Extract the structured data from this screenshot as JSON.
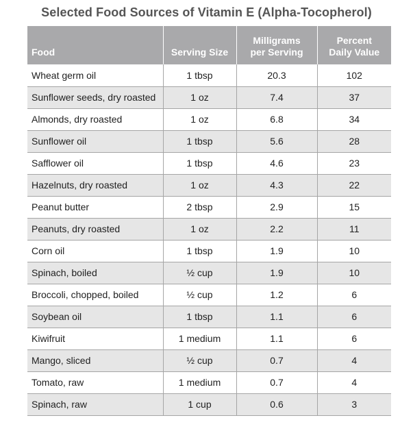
{
  "title": "Selected Food Sources of Vitamin E (Alpha-Tocopherol)",
  "header": {
    "food": "Food",
    "serving": "Serving Size",
    "mg_line1": "Milligrams",
    "mg_line2": "per Serving",
    "pct_line1": "Percent",
    "pct_line2": "Daily Value"
  },
  "rows": [
    {
      "food": "Wheat germ oil",
      "serving": "1 tbsp",
      "mg": "20.3",
      "pct": "102"
    },
    {
      "food": "Sunflower seeds, dry roasted",
      "serving": "1 oz",
      "mg": "7.4",
      "pct": "37"
    },
    {
      "food": "Almonds, dry roasted",
      "serving": "1 oz",
      "mg": "6.8",
      "pct": "34"
    },
    {
      "food": "Sunflower oil",
      "serving": "1 tbsp",
      "mg": "5.6",
      "pct": "28"
    },
    {
      "food": "Safflower oil",
      "serving": "1 tbsp",
      "mg": "4.6",
      "pct": "23"
    },
    {
      "food": "Hazelnuts, dry roasted",
      "serving": "1 oz",
      "mg": "4.3",
      "pct": "22"
    },
    {
      "food": "Peanut butter",
      "serving": "2 tbsp",
      "mg": "2.9",
      "pct": "15"
    },
    {
      "food": "Peanuts, dry roasted",
      "serving": "1 oz",
      "mg": "2.2",
      "pct": "11"
    },
    {
      "food": "Corn oil",
      "serving": "1 tbsp",
      "mg": "1.9",
      "pct": "10"
    },
    {
      "food": "Spinach, boiled",
      "serving": "½ cup",
      "mg": "1.9",
      "pct": "10"
    },
    {
      "food": "Broccoli, chopped, boiled",
      "serving": "½ cup",
      "mg": "1.2",
      "pct": "6"
    },
    {
      "food": "Soybean oil",
      "serving": "1 tbsp",
      "mg": "1.1",
      "pct": "6"
    },
    {
      "food": "Kiwifruit",
      "serving": "1 medium",
      "mg": "1.1",
      "pct": "6"
    },
    {
      "food": "Mango, sliced",
      "serving": "½ cup",
      "mg": "0.7",
      "pct": "4"
    },
    {
      "food": "Tomato, raw",
      "serving": "1 medium",
      "mg": "0.7",
      "pct": "4"
    },
    {
      "food": "Spinach, raw",
      "serving": "1 cup",
      "mg": "0.6",
      "pct": "3"
    }
  ],
  "colors": {
    "header_bg": "#a9a9ab",
    "header_text": "#ffffff",
    "title_text": "#555555",
    "stripe_bg": "#e6e6e6",
    "rule": "#a5a5a5"
  }
}
